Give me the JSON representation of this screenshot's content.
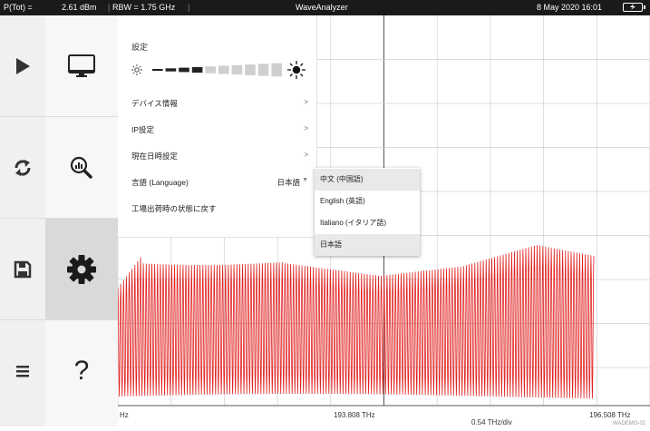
{
  "status_bar": {
    "ptot_label": "P(Tot) =",
    "ptot_value": "2.61 dBm",
    "rbw": "RBW = 1.75 GHz",
    "app_title": "WaveAnalyzer",
    "datetime": "8 May 2020 16:01"
  },
  "left_nav": [
    {
      "icon": "play-icon"
    },
    {
      "icon": "refresh-icon"
    },
    {
      "icon": "save-icon"
    },
    {
      "icon": "menu-icon"
    }
  ],
  "sub_nav": [
    {
      "icon": "monitor-icon"
    },
    {
      "icon": "zoom-chart-icon"
    },
    {
      "icon": "gear-icon",
      "active": true
    },
    {
      "icon": "help-icon",
      "glyph": "?"
    }
  ],
  "settings_menu": {
    "title": "設定",
    "brightness_level": 0.4,
    "items": [
      {
        "label": "デバイス情報",
        "chevron": ">"
      },
      {
        "label": "IP設定",
        "chevron": ">"
      },
      {
        "label": "現在日時設定",
        "chevron": ">"
      },
      {
        "label": "言語 (Language)",
        "value": "日本語",
        "caret": "▼"
      },
      {
        "label": "工場出荷時の状態に戻す"
      }
    ]
  },
  "language_options": [
    "中文 (中国語)",
    "English (英語)",
    "Italiano (イタリア語)",
    "日本語"
  ],
  "language_highlighted": [
    0,
    3
  ],
  "x_axis": {
    "left_label": "Hz",
    "center_label": "193.808 THz",
    "right_label": "196.508 THz",
    "div_label": "0.54 THz/div"
  },
  "watermark": "WADEMO-02",
  "colors": {
    "trace": "#e02020",
    "grid": "#d0d0d0",
    "topbar": "#1a1a1a"
  }
}
